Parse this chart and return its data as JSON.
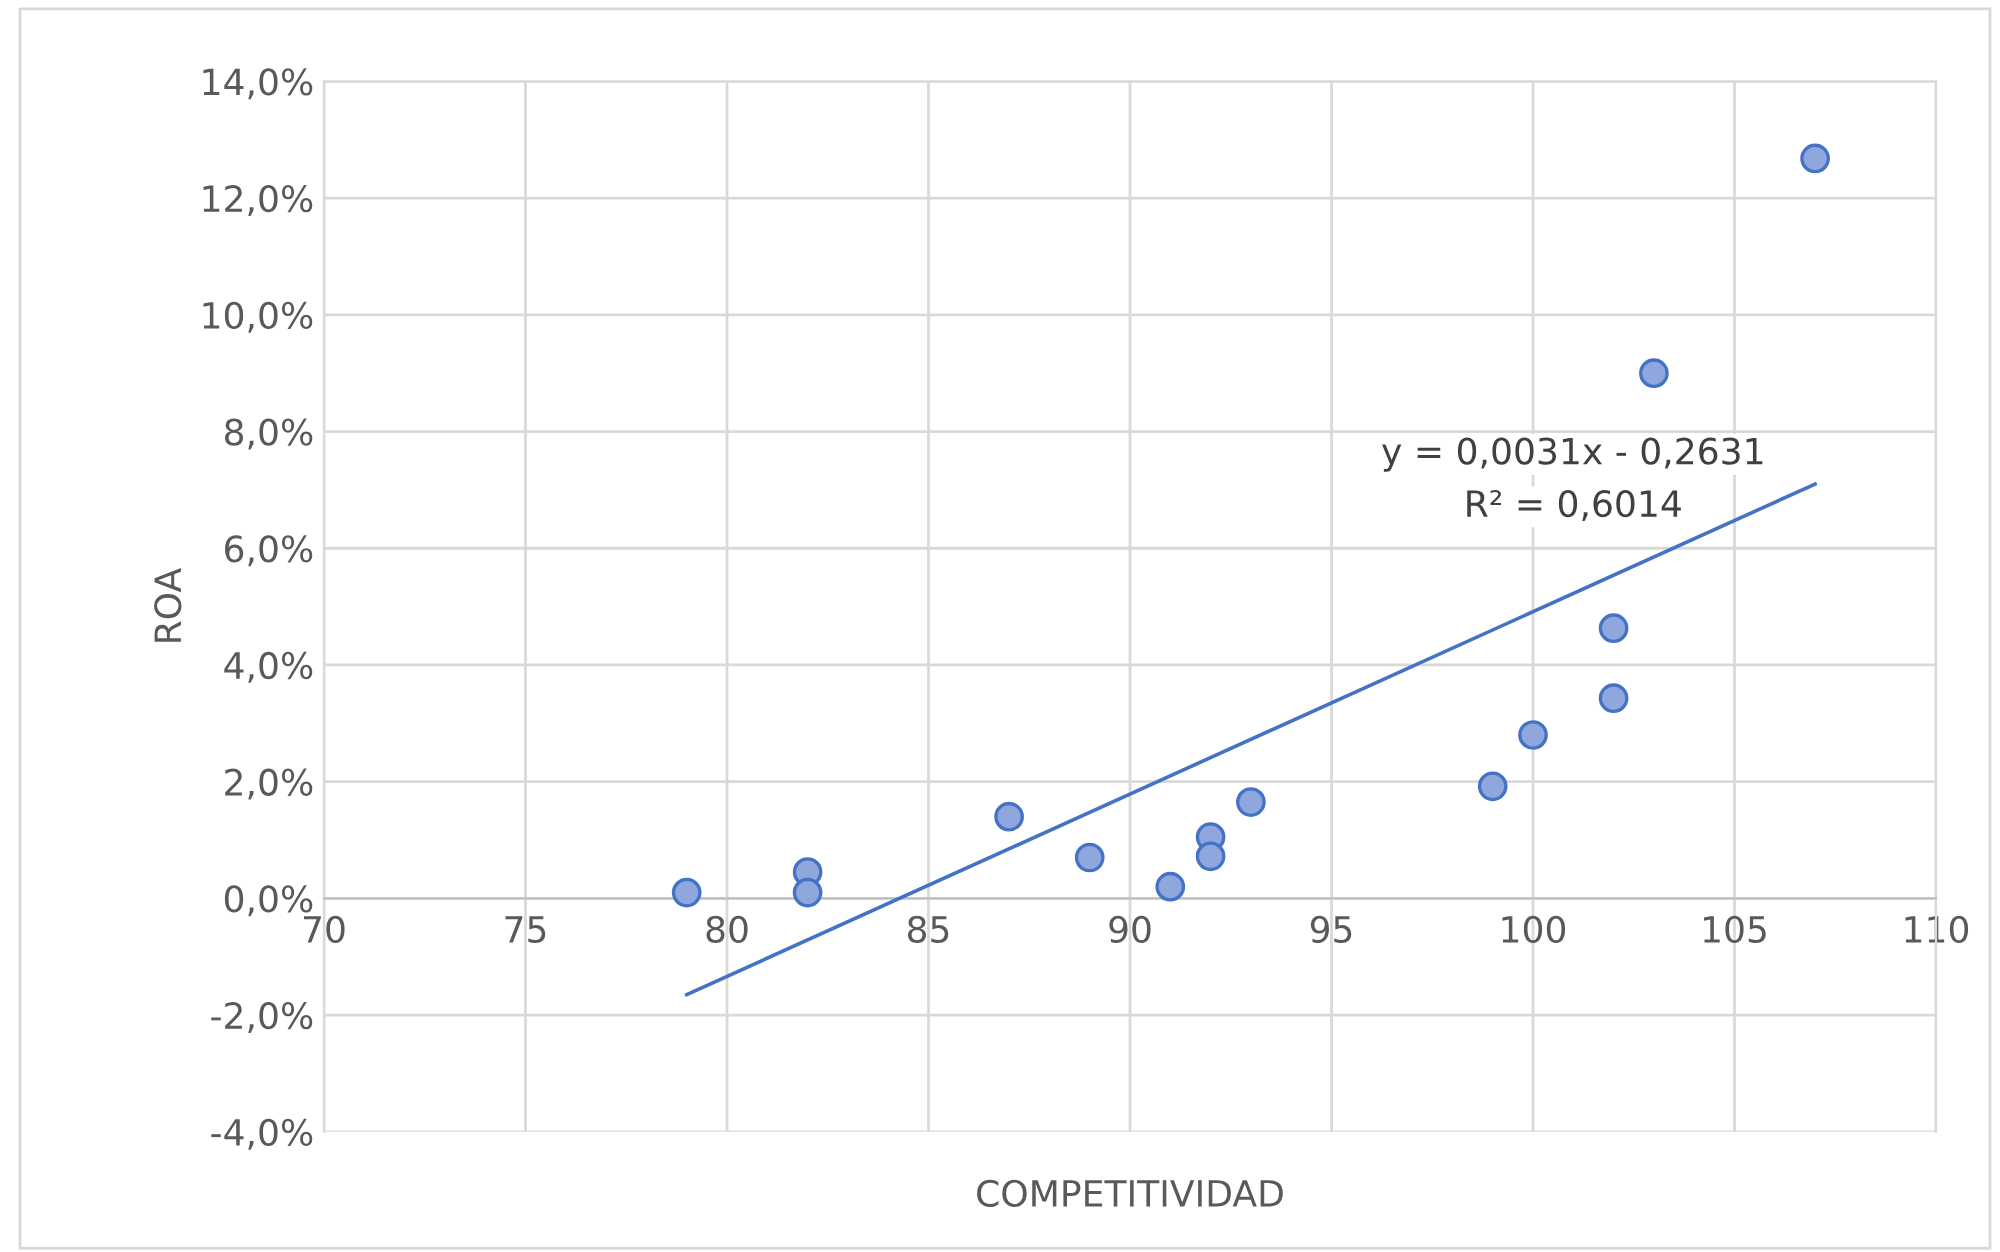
{
  "chart_data": {
    "type": "scatter",
    "xlabel": "COMPETITIVIDAD",
    "ylabel": "ROA",
    "xlim": [
      70,
      110
    ],
    "xticks": [
      70,
      75,
      80,
      85,
      90,
      95,
      100,
      105,
      110
    ],
    "ylim": [
      -4,
      14
    ],
    "yticks": [
      {
        "value": -4,
        "label": "-4,0%"
      },
      {
        "value": -2,
        "label": "-2,0%"
      },
      {
        "value": 0,
        "label": "0,0%"
      },
      {
        "value": 2,
        "label": "2,0%"
      },
      {
        "value": 4,
        "label": "4,0%"
      },
      {
        "value": 6,
        "label": "6,0%"
      },
      {
        "value": 8,
        "label": "8,0%"
      },
      {
        "value": 10,
        "label": "10,0%"
      },
      {
        "value": 12,
        "label": "12,0%"
      },
      {
        "value": 14,
        "label": "14,0%"
      }
    ],
    "grid": true,
    "legend": false,
    "series": [
      {
        "marker": "circle",
        "color": "#8fa7dc",
        "x": [
          79,
          82,
          82,
          87,
          89,
          91,
          92,
          92,
          93,
          99,
          100,
          102,
          102,
          103,
          107
        ],
        "values": [
          0.1,
          0.45,
          0.1,
          1.4,
          0.7,
          0.2,
          1.05,
          0.72,
          1.65,
          1.92,
          2.8,
          4.63,
          3.43,
          9.0,
          12.68
        ]
      },
      {
        "type": "line",
        "color": "#4472c4",
        "x": [
          79,
          107
        ],
        "values": [
          -1.65,
          7.1
        ]
      }
    ],
    "annotations": [
      "y = 0,0031x - 0,2631",
      "R² = 0,6014"
    ]
  }
}
